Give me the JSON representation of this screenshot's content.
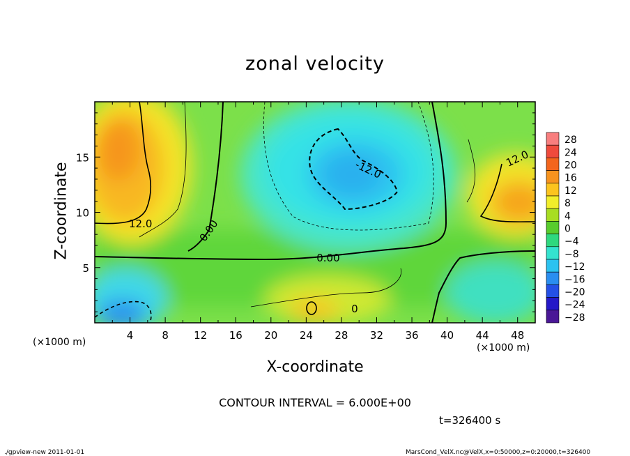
{
  "chart_data": {
    "type": "heatmap",
    "title": "zonal velocity",
    "xlabel": "X-coordinate",
    "ylabel": "Z-coordinate",
    "x_unit_label": "(×1000 m)",
    "x_ticks": [
      4,
      8,
      12,
      16,
      20,
      24,
      28,
      32,
      36,
      40,
      44,
      48
    ],
    "y_ticks": [
      5,
      10,
      15
    ],
    "xlim": [
      0,
      50
    ],
    "ylim": [
      0,
      20
    ],
    "colorbar": {
      "levels": [
        28,
        24,
        20,
        16,
        12,
        8,
        4,
        0,
        -4,
        -8,
        -12,
        -16,
        -20,
        -24,
        -28
      ],
      "colors": [
        "#f87e7e",
        "#ef4a3c",
        "#f3651c",
        "#f7931e",
        "#fcc41e",
        "#f2ee2a",
        "#a8dd22",
        "#58cc2c",
        "#2fd87e",
        "#34e3cf",
        "#2bc2f0",
        "#2a8ef0",
        "#2450e6",
        "#2418c8",
        "#4a1796"
      ]
    },
    "contour_labels": [
      "12.0",
      "12.0",
      "-12.0",
      "0.00",
      "0.00",
      "0"
    ],
    "contour_interval_text": "CONTOUR INTERVAL = 6.000E+00",
    "time_text": "t=326400 s",
    "footer_left": "./gpview-new   2011-01-01",
    "footer_right": "MarsCond_VelX.nc@VelX,x=0:50000,z=0:20000,t=326400"
  }
}
